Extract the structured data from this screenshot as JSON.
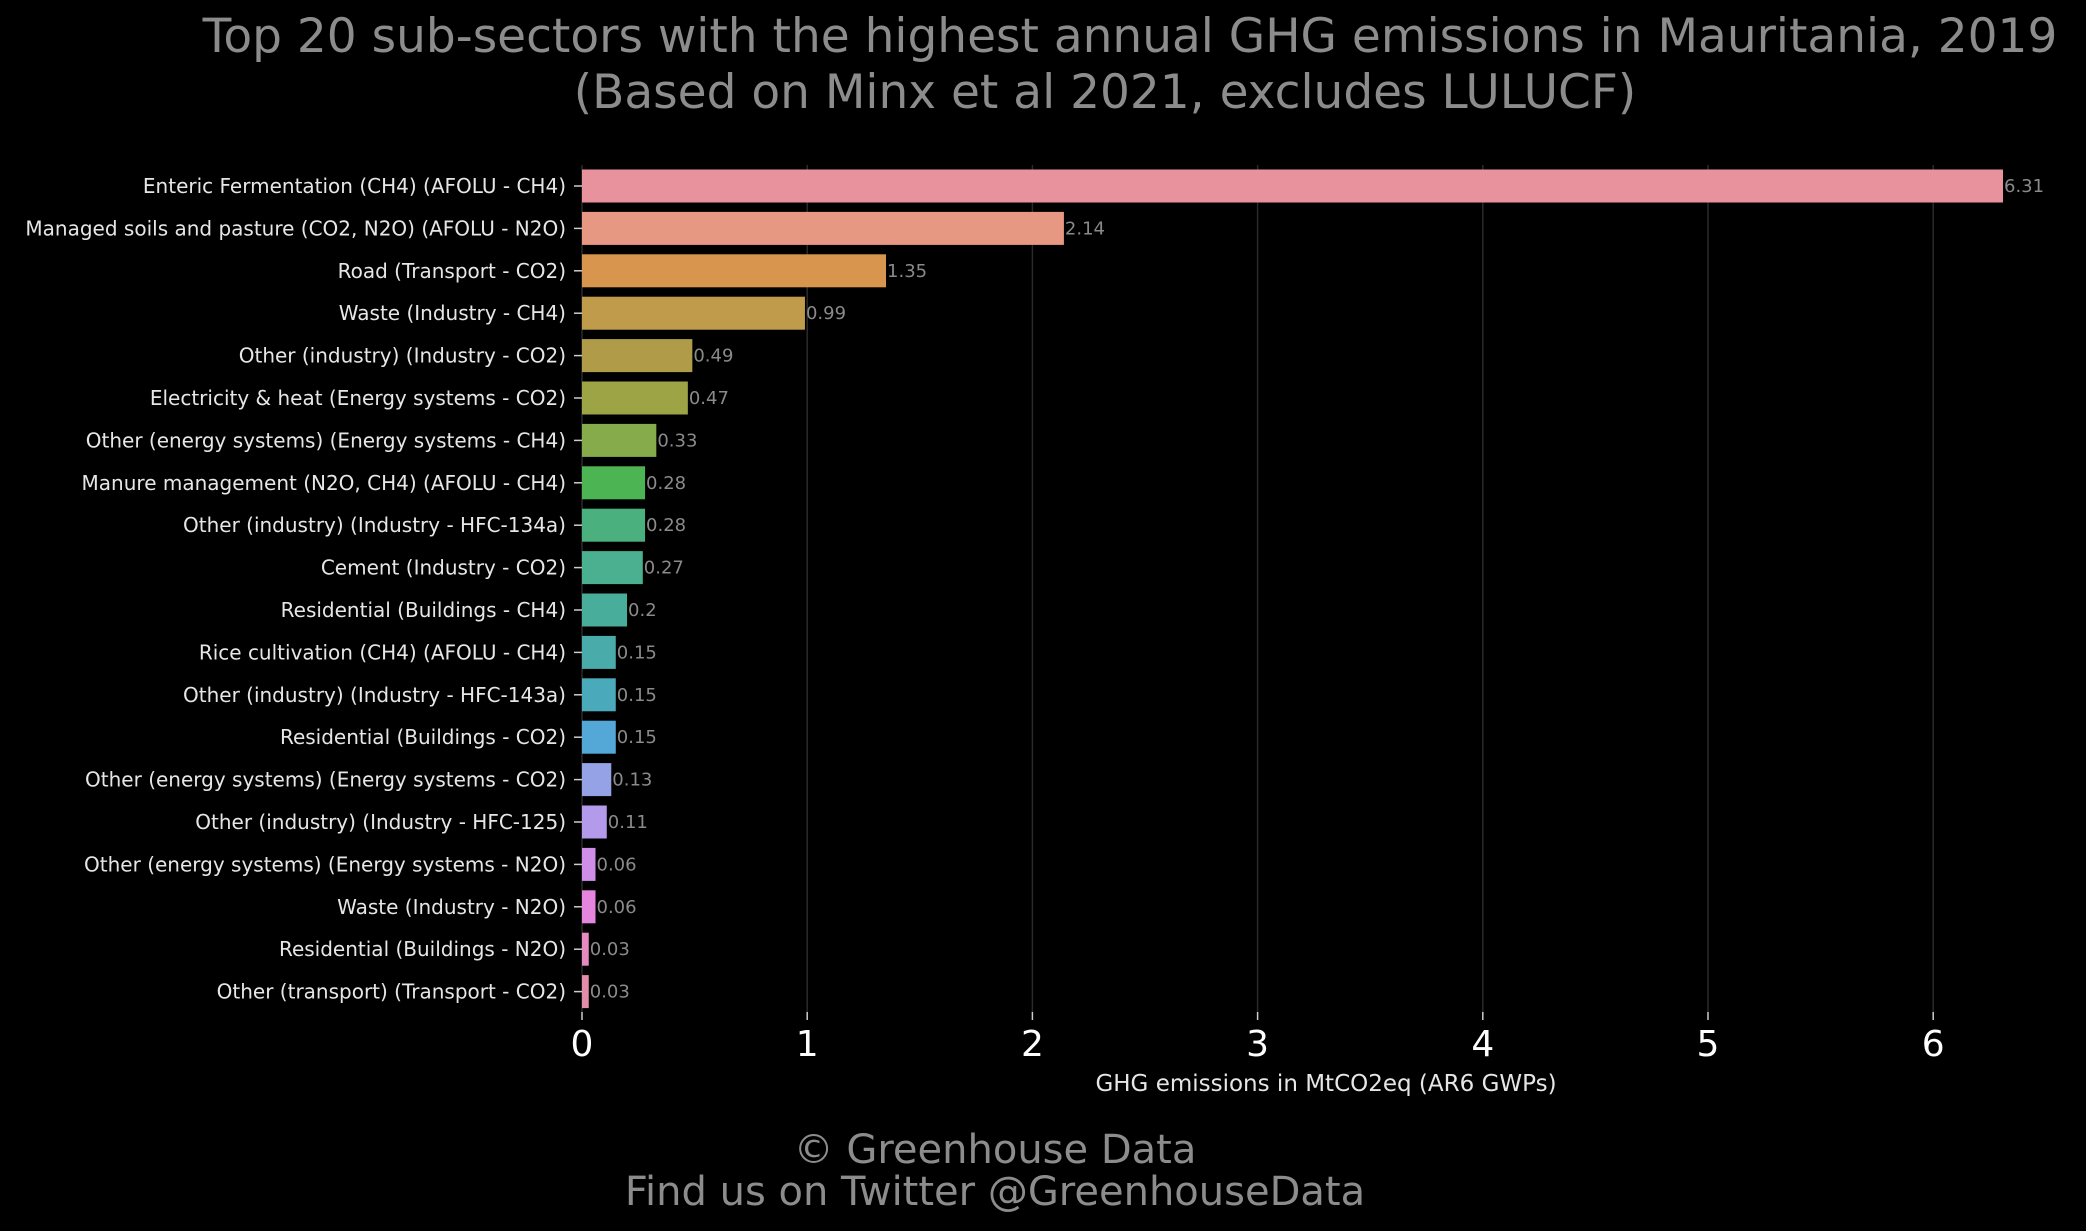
{
  "chart_data": {
    "type": "bar",
    "orientation": "horizontal",
    "title": "Top 20 sub-sectors with the highest annual GHG emissions in Mauritania, 2019",
    "subtitle": "(Based on Minx et al 2021, excludes LULUCF)",
    "xlabel": "GHG emissions in MtCO2eq (AR6 GWPs)",
    "ylabel": "",
    "xlim": [
      0,
      6.45
    ],
    "xticks": [
      0,
      1,
      2,
      3,
      4,
      5,
      6
    ],
    "grid": "vertical",
    "categories": [
      "Enteric Fermentation (CH4) (AFOLU - CH4)",
      "Managed soils and pasture (CO2, N2O) (AFOLU - N2O)",
      "Road (Transport - CO2)",
      "Waste (Industry - CH4)",
      "Other (industry) (Industry - CO2)",
      "Electricity & heat (Energy systems - CO2)",
      "Other (energy systems) (Energy systems - CH4)",
      "Manure management (N2O, CH4) (AFOLU - CH4)",
      "Other (industry) (Industry - HFC-134a)",
      "Cement (Industry - CO2)",
      "Residential (Buildings - CH4)",
      "Rice cultivation (CH4) (AFOLU - CH4)",
      "Other (industry) (Industry - HFC-143a)",
      "Residential (Buildings - CO2)",
      "Other (energy systems) (Energy systems - CO2)",
      "Other (industry) (Industry - HFC-125)",
      "Other (energy systems) (Energy systems - N2O)",
      "Waste (Industry - N2O)",
      "Residential (Buildings - N2O)",
      "Other (transport) (Transport - CO2)"
    ],
    "values": [
      6.31,
      2.14,
      1.35,
      0.99,
      0.49,
      0.47,
      0.33,
      0.28,
      0.28,
      0.27,
      0.2,
      0.15,
      0.15,
      0.15,
      0.13,
      0.11,
      0.06,
      0.06,
      0.03,
      0.03
    ],
    "value_labels": [
      "6.31",
      "2.14",
      "1.35",
      "0.99",
      "0.49",
      "0.47",
      "0.33",
      "0.28",
      "0.28",
      "0.27",
      "0.2",
      "0.15",
      "0.15",
      "0.15",
      "0.13",
      "0.11",
      "0.06",
      "0.06",
      "0.03",
      "0.03"
    ],
    "colors": [
      "#e8929e",
      "#e69882",
      "#d8954e",
      "#c09b4c",
      "#b09c48",
      "#9da446",
      "#85ab4a",
      "#4db453",
      "#4ab17e",
      "#4ab08f",
      "#49ad9c",
      "#4aabab",
      "#4aaabb",
      "#53a8d8",
      "#95a3e6",
      "#b39aea",
      "#cf8ee8",
      "#e486de",
      "#e68bc2",
      "#e28daa"
    ]
  },
  "footer": {
    "line1": "© Greenhouse Data",
    "line2": "Find us on Twitter @GreenhouseData"
  },
  "colors": {
    "background": "#000000",
    "title": "#8c8c8c",
    "category_text": "#e6e6e6",
    "value_text": "#8a8a8a",
    "tick_text": "#ffffff",
    "grid": "#2a2a2a"
  }
}
